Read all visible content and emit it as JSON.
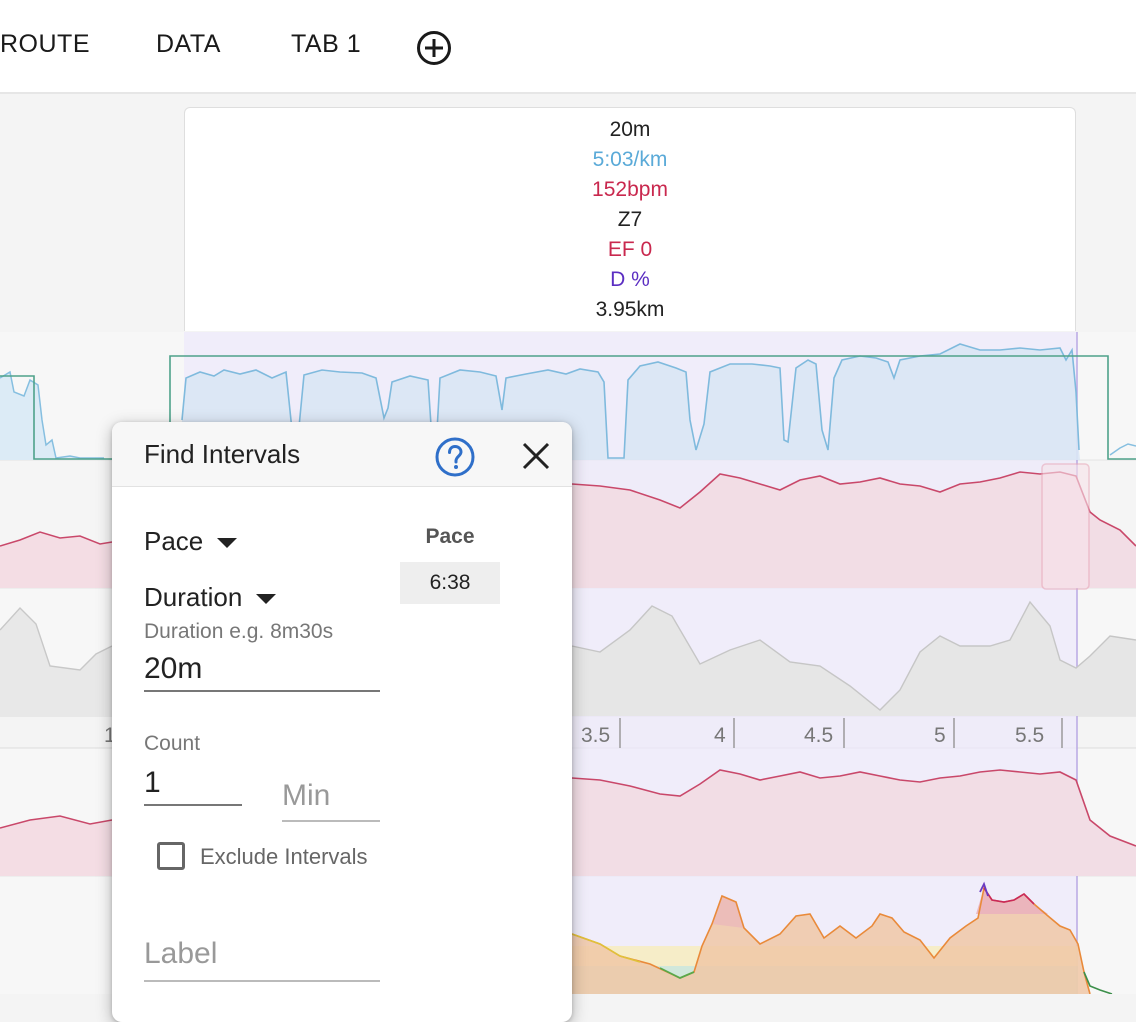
{
  "tabs": [
    {
      "label": "ROUTE"
    },
    {
      "label": "DATA"
    },
    {
      "label": "TAB 1"
    }
  ],
  "add_tab_icon": "plus-circle-icon",
  "summary": {
    "duration": "20m",
    "pace": "5:03/km",
    "heart_rate": "152bpm",
    "zone": "Z7",
    "ef": "EF 0",
    "decoupling": "D %",
    "distance": "3.95km"
  },
  "axis_ticks": [
    "1",
    "3.5",
    "4",
    "4.5",
    "5",
    "5.5"
  ],
  "colors": {
    "pace_line": "#6fb3dc",
    "hr_line": "#c9486a",
    "selection": "#a58fd6",
    "summary_pace": "#5aaad8",
    "summary_hr": "#c9284e",
    "summary_decoupling": "#5b2ec2"
  },
  "dialog": {
    "title": "Find Intervals",
    "help_icon": "help-circle-icon",
    "close_icon": "close-icon",
    "metric_select": "Pace",
    "mode_select": "Duration",
    "duration_hint": "Duration e.g. 8m30s",
    "duration_value": "20m",
    "count_label": "Count",
    "count_value": "1",
    "min_placeholder": "Min",
    "exclude_label": "Exclude Intervals",
    "exclude_checked": false,
    "label_placeholder": "Label",
    "result_header": "Pace",
    "result_value": "6:38"
  }
}
